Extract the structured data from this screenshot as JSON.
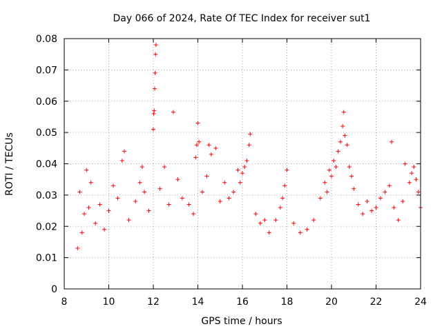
{
  "chart_data": {
    "type": "scatter",
    "title": "Day 066 of 2024, Rate Of TEC Index for receiver sut1",
    "xlabel": "GPS time / hours",
    "ylabel": "ROTI / TECUs",
    "xlim": [
      8,
      24
    ],
    "ylim": [
      0,
      0.08
    ],
    "xticks": [
      8,
      10,
      12,
      14,
      16,
      18,
      20,
      22,
      24
    ],
    "xtick_labels": [
      "8",
      "10",
      "12",
      "14",
      "16",
      "18",
      "20",
      "22",
      "24"
    ],
    "yticks": [
      0,
      0.01,
      0.02,
      0.03,
      0.04,
      0.05,
      0.06,
      0.07,
      0.08
    ],
    "ytick_labels": [
      "0",
      "0.01",
      "0.02",
      "0.03",
      "0.04",
      "0.05",
      "0.06",
      "0.07",
      "0.08"
    ],
    "grid": true,
    "marker": "+",
    "color": "#ff0000",
    "series": [
      {
        "name": "sut1",
        "points": [
          [
            8.6,
            0.013
          ],
          [
            8.7,
            0.031
          ],
          [
            8.8,
            0.018
          ],
          [
            8.9,
            0.024
          ],
          [
            9.0,
            0.038
          ],
          [
            9.1,
            0.026
          ],
          [
            9.2,
            0.034
          ],
          [
            9.4,
            0.021
          ],
          [
            9.6,
            0.027
          ],
          [
            9.8,
            0.019
          ],
          [
            10.0,
            0.025
          ],
          [
            10.2,
            0.033
          ],
          [
            10.4,
            0.029
          ],
          [
            10.6,
            0.041
          ],
          [
            10.7,
            0.044
          ],
          [
            10.9,
            0.022
          ],
          [
            11.2,
            0.028
          ],
          [
            11.4,
            0.034
          ],
          [
            11.5,
            0.039
          ],
          [
            11.6,
            0.031
          ],
          [
            11.8,
            0.025
          ],
          [
            12.0,
            0.051
          ],
          [
            12.02,
            0.056
          ],
          [
            12.04,
            0.057
          ],
          [
            12.06,
            0.064
          ],
          [
            12.08,
            0.069
          ],
          [
            12.1,
            0.075
          ],
          [
            12.12,
            0.078
          ],
          [
            12.3,
            0.032
          ],
          [
            12.5,
            0.039
          ],
          [
            12.7,
            0.027
          ],
          [
            12.9,
            0.0565
          ],
          [
            13.1,
            0.035
          ],
          [
            13.3,
            0.029
          ],
          [
            13.6,
            0.027
          ],
          [
            13.8,
            0.024
          ],
          [
            13.9,
            0.042
          ],
          [
            13.95,
            0.046
          ],
          [
            14.0,
            0.053
          ],
          [
            14.05,
            0.047
          ],
          [
            14.2,
            0.031
          ],
          [
            14.4,
            0.036
          ],
          [
            14.5,
            0.046
          ],
          [
            14.6,
            0.043
          ],
          [
            14.8,
            0.045
          ],
          [
            15.0,
            0.028
          ],
          [
            15.2,
            0.034
          ],
          [
            15.4,
            0.029
          ],
          [
            15.6,
            0.031
          ],
          [
            15.8,
            0.038
          ],
          [
            15.9,
            0.034
          ],
          [
            16.0,
            0.037
          ],
          [
            16.1,
            0.039
          ],
          [
            16.2,
            0.041
          ],
          [
            16.3,
            0.046
          ],
          [
            16.35,
            0.0495
          ],
          [
            16.6,
            0.024
          ],
          [
            16.8,
            0.021
          ],
          [
            17.0,
            0.022
          ],
          [
            17.2,
            0.018
          ],
          [
            17.5,
            0.022
          ],
          [
            17.7,
            0.026
          ],
          [
            17.8,
            0.029
          ],
          [
            17.9,
            0.033
          ],
          [
            18.0,
            0.038
          ],
          [
            18.3,
            0.021
          ],
          [
            18.6,
            0.018
          ],
          [
            18.9,
            0.019
          ],
          [
            19.2,
            0.022
          ],
          [
            19.5,
            0.029
          ],
          [
            19.7,
            0.034
          ],
          [
            19.8,
            0.031
          ],
          [
            19.9,
            0.038
          ],
          [
            20.0,
            0.036
          ],
          [
            20.1,
            0.041
          ],
          [
            20.2,
            0.039
          ],
          [
            20.3,
            0.044
          ],
          [
            20.4,
            0.047
          ],
          [
            20.5,
            0.052
          ],
          [
            20.55,
            0.0565
          ],
          [
            20.6,
            0.049
          ],
          [
            20.7,
            0.046
          ],
          [
            20.8,
            0.039
          ],
          [
            20.9,
            0.036
          ],
          [
            21.0,
            0.032
          ],
          [
            21.2,
            0.027
          ],
          [
            21.4,
            0.024
          ],
          [
            21.6,
            0.028
          ],
          [
            21.8,
            0.025
          ],
          [
            22.0,
            0.026
          ],
          [
            22.2,
            0.029
          ],
          [
            22.4,
            0.031
          ],
          [
            22.6,
            0.033
          ],
          [
            22.7,
            0.047
          ],
          [
            22.8,
            0.026
          ],
          [
            23.0,
            0.022
          ],
          [
            23.2,
            0.028
          ],
          [
            23.3,
            0.04
          ],
          [
            23.5,
            0.034
          ],
          [
            23.6,
            0.037
          ],
          [
            23.7,
            0.039
          ],
          [
            23.8,
            0.035
          ],
          [
            23.9,
            0.031
          ],
          [
            24.0,
            0.026
          ]
        ]
      }
    ]
  }
}
